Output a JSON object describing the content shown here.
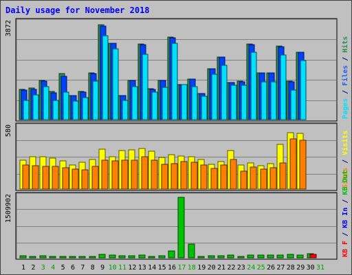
{
  "chart_data": {
    "type": "bar",
    "title": "Daily usage for November 2018",
    "categories": [
      "1",
      "2",
      "3",
      "4",
      "5",
      "6",
      "7",
      "8",
      "9",
      "10",
      "11",
      "12",
      "13",
      "14",
      "15",
      "16",
      "17",
      "18",
      "19",
      "20",
      "21",
      "22",
      "23",
      "24",
      "25",
      "26",
      "27",
      "28",
      "29",
      "30",
      "31"
    ],
    "weekend_days": [
      "3",
      "4",
      "10",
      "11",
      "17",
      "18",
      "24",
      "25",
      "31"
    ],
    "panels": [
      {
        "id": "hits_files_pages",
        "ymax_label": "3872",
        "ymax": 3872,
        "right_labels": [
          {
            "text": "Pages",
            "color": "#00e0ff"
          },
          {
            "text": " / ",
            "color": "#000080"
          },
          {
            "text": "Files",
            "color": "#2060ff"
          },
          {
            "text": " / ",
            "color": "#000080"
          },
          {
            "text": "Hits",
            "color": "#2e8b57"
          }
        ],
        "series": [
          {
            "name": "Hits",
            "color": "#2e8b57",
            "values": [
              1210,
              1260,
              1560,
              1120,
              1850,
              950,
              1120,
              1860,
              3780,
              3050,
              960,
              1570,
              3010,
              1240,
              1560,
              3290,
              1410,
              1620,
              1040,
              2020,
              2490,
              1470,
              1540,
              3030,
              1860,
              1860,
              2940,
              1530,
              2700,
              0,
              0
            ]
          },
          {
            "name": "Files",
            "color": "#0040ff",
            "values": [
              1180,
              1200,
              1530,
              1070,
              1740,
              970,
              1110,
              1850,
              3740,
              3040,
              960,
              1570,
              3000,
              1220,
              1560,
              3280,
              1410,
              1620,
              1040,
              2020,
              2490,
              1470,
              1520,
              3000,
              1860,
              1860,
              2900,
              1510,
              2680,
              0,
              0
            ]
          },
          {
            "name": "Pages",
            "color": "#00e0ff",
            "values": [
              780,
              1000,
              1330,
              760,
              1110,
              740,
              870,
              1550,
              3350,
              2840,
              770,
              1320,
              2610,
              1100,
              1280,
              3040,
              1410,
              1330,
              930,
              1810,
              2170,
              1380,
              1360,
              2690,
              1500,
              1500,
              2590,
              1170,
              2370,
              0,
              0
            ]
          }
        ]
      },
      {
        "id": "visits_sites",
        "ymax_label": "580",
        "ymax": 580,
        "right_labels": [
          {
            "text": "Sites",
            "color": "#ff8000"
          },
          {
            "text": " / ",
            "color": "#000080"
          },
          {
            "text": "Visits",
            "color": "#ffff00"
          }
        ],
        "series": [
          {
            "name": "Visits",
            "color": "#ffff00",
            "values": [
              269,
              303,
              300,
              291,
              266,
              227,
              250,
              277,
              375,
              305,
              359,
              367,
              383,
              353,
              298,
              319,
              312,
              306,
              280,
              230,
              260,
              358,
              223,
              248,
              221,
              241,
              417,
              530,
              520,
              0,
              0
            ]
          },
          {
            "name": "Sites",
            "color": "#ff8000",
            "values": [
              223,
              217,
              215,
              210,
              203,
              187,
              181,
              210,
              270,
              263,
              268,
              273,
              303,
              273,
              235,
              238,
              258,
              252,
              225,
              191,
              228,
              276,
              165,
              204,
              184,
              197,
              247,
              473,
              456,
              0,
              0
            ]
          }
        ]
      },
      {
        "id": "kbytes",
        "ymax_label": "1509902",
        "ymax": 1509902,
        "right_labels": [
          {
            "text": "KB F",
            "color": "#ff0000"
          },
          {
            "text": " / ",
            "color": "#000080"
          },
          {
            "text": "KB In",
            "color": "#0000ff"
          },
          {
            "text": " / ",
            "color": "#000080"
          },
          {
            "text": "KB Out",
            "color": "#00c000"
          }
        ],
        "series": [
          {
            "name": "KB Out",
            "color": "#00c000",
            "values": [
              45000,
              35000,
              45000,
              40000,
              40000,
              30000,
              30000,
              40000,
              80000,
              75000,
              45000,
              45000,
              70000,
              40000,
              45000,
              175000,
              1500000,
              345000,
              40000,
              50000,
              55000,
              60000,
              40000,
              65000,
              60000,
              65000,
              60000,
              80000,
              75000,
              105000,
              0
            ]
          },
          {
            "name": "KB F",
            "color": "#ff0000",
            "values": [
              0,
              0,
              0,
              0,
              0,
              0,
              0,
              0,
              0,
              0,
              0,
              0,
              0,
              0,
              0,
              0,
              0,
              0,
              0,
              0,
              0,
              0,
              0,
              0,
              0,
              0,
              0,
              0,
              0,
              80000,
              0
            ]
          }
        ]
      }
    ]
  },
  "colors": {
    "background": "#c0c0c0",
    "panel": "#c0c0c0",
    "grid": "#808080",
    "title": "#0000ff",
    "weekday_label": "#000000",
    "weekend_label": "#00a000"
  }
}
